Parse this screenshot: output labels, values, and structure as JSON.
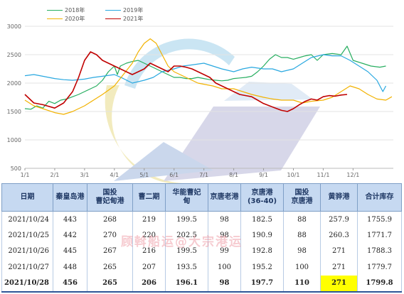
{
  "chart_data": {
    "type": "line",
    "x_ticks": [
      "1/1",
      "2/1",
      "3/1",
      "4/1",
      "5/1",
      "6/1",
      "7/1",
      "8/1",
      "9/1",
      "10/1",
      "11/1",
      "12/1"
    ],
    "y_ticks": [
      500,
      1000,
      1500,
      2000,
      2500,
      3000
    ],
    "ylim": [
      500,
      3000
    ],
    "xlim": [
      0,
      12.35
    ],
    "series": [
      {
        "name": "2018年",
        "color": "#27ae60",
        "points": [
          [
            0,
            1550
          ],
          [
            0.2,
            1540
          ],
          [
            0.4,
            1600
          ],
          [
            0.6,
            1560
          ],
          [
            0.8,
            1680
          ],
          [
            1.0,
            1640
          ],
          [
            1.2,
            1700
          ],
          [
            1.4,
            1720
          ],
          [
            1.6,
            1760
          ],
          [
            1.8,
            1800
          ],
          [
            2.0,
            1850
          ],
          [
            2.2,
            1900
          ],
          [
            2.4,
            1950
          ],
          [
            2.6,
            2050
          ],
          [
            2.8,
            2200
          ],
          [
            3.0,
            2300
          ],
          [
            3.1,
            2150
          ],
          [
            3.2,
            2300
          ],
          [
            3.4,
            2350
          ],
          [
            3.6,
            2380
          ],
          [
            3.8,
            2400
          ],
          [
            4.0,
            2350
          ],
          [
            4.2,
            2300
          ],
          [
            4.4,
            2250
          ],
          [
            4.6,
            2200
          ],
          [
            4.8,
            2150
          ],
          [
            5.0,
            2100
          ],
          [
            5.2,
            2100
          ],
          [
            5.4,
            2080
          ],
          [
            5.6,
            2080
          ],
          [
            5.8,
            2100
          ],
          [
            6.0,
            2080
          ],
          [
            6.2,
            2060
          ],
          [
            6.4,
            2050
          ],
          [
            6.6,
            2040
          ],
          [
            6.8,
            2050
          ],
          [
            7.0,
            2080
          ],
          [
            7.2,
            2090
          ],
          [
            7.4,
            2100
          ],
          [
            7.6,
            2120
          ],
          [
            7.8,
            2200
          ],
          [
            8.0,
            2300
          ],
          [
            8.2,
            2420
          ],
          [
            8.4,
            2500
          ],
          [
            8.6,
            2450
          ],
          [
            8.8,
            2450
          ],
          [
            9.0,
            2420
          ],
          [
            9.2,
            2450
          ],
          [
            9.4,
            2480
          ],
          [
            9.6,
            2500
          ],
          [
            9.8,
            2400
          ],
          [
            10.0,
            2500
          ],
          [
            10.3,
            2520
          ],
          [
            10.6,
            2500
          ],
          [
            10.8,
            2650
          ],
          [
            11.0,
            2400
          ],
          [
            11.3,
            2350
          ],
          [
            11.6,
            2300
          ],
          [
            11.9,
            2280
          ],
          [
            12.1,
            2300
          ]
        ]
      },
      {
        "name": "2019年",
        "color": "#29a8e0",
        "points": [
          [
            0,
            2130
          ],
          [
            0.3,
            2150
          ],
          [
            0.6,
            2120
          ],
          [
            1.0,
            2080
          ],
          [
            1.3,
            2060
          ],
          [
            1.6,
            2050
          ],
          [
            2.0,
            2070
          ],
          [
            2.3,
            2100
          ],
          [
            2.6,
            2120
          ],
          [
            3.0,
            2150
          ],
          [
            3.3,
            2080
          ],
          [
            3.6,
            2000
          ],
          [
            4.0,
            2050
          ],
          [
            4.3,
            2100
          ],
          [
            4.6,
            2200
          ],
          [
            5.0,
            2250
          ],
          [
            5.3,
            2300
          ],
          [
            5.6,
            2320
          ],
          [
            6.0,
            2350
          ],
          [
            6.3,
            2300
          ],
          [
            6.6,
            2250
          ],
          [
            7.0,
            2200
          ],
          [
            7.3,
            2250
          ],
          [
            7.6,
            2280
          ],
          [
            8.0,
            2250
          ],
          [
            8.3,
            2250
          ],
          [
            8.6,
            2200
          ],
          [
            9.0,
            2250
          ],
          [
            9.3,
            2350
          ],
          [
            9.6,
            2450
          ],
          [
            10.0,
            2500
          ],
          [
            10.3,
            2480
          ],
          [
            10.6,
            2480
          ],
          [
            10.9,
            2400
          ],
          [
            11.2,
            2300
          ],
          [
            11.5,
            2200
          ],
          [
            11.8,
            2050
          ],
          [
            12.0,
            1850
          ],
          [
            12.1,
            1950
          ]
        ]
      },
      {
        "name": "2020年",
        "color": "#f2b200",
        "points": [
          [
            0,
            1700
          ],
          [
            0.3,
            1600
          ],
          [
            0.6,
            1550
          ],
          [
            1.0,
            1480
          ],
          [
            1.3,
            1450
          ],
          [
            1.6,
            1500
          ],
          [
            2.0,
            1600
          ],
          [
            2.3,
            1700
          ],
          [
            2.6,
            1800
          ],
          [
            3.0,
            1950
          ],
          [
            3.3,
            2150
          ],
          [
            3.6,
            2350
          ],
          [
            3.8,
            2550
          ],
          [
            4.0,
            2700
          ],
          [
            4.2,
            2780
          ],
          [
            4.4,
            2700
          ],
          [
            4.6,
            2500
          ],
          [
            4.8,
            2300
          ],
          [
            5.0,
            2200
          ],
          [
            5.2,
            2150
          ],
          [
            5.4,
            2100
          ],
          [
            5.6,
            2050
          ],
          [
            5.8,
            2000
          ],
          [
            6.0,
            1980
          ],
          [
            6.3,
            1950
          ],
          [
            6.6,
            1900
          ],
          [
            7.0,
            1900
          ],
          [
            7.3,
            1850
          ],
          [
            7.6,
            1800
          ],
          [
            8.0,
            1750
          ],
          [
            8.3,
            1720
          ],
          [
            8.6,
            1700
          ],
          [
            9.0,
            1700
          ],
          [
            9.3,
            1650
          ],
          [
            9.6,
            1680
          ],
          [
            10.0,
            1700
          ],
          [
            10.3,
            1750
          ],
          [
            10.6,
            1850
          ],
          [
            10.9,
            1950
          ],
          [
            11.2,
            1900
          ],
          [
            11.5,
            1800
          ],
          [
            11.8,
            1720
          ],
          [
            12.1,
            1700
          ],
          [
            12.3,
            1760
          ]
        ]
      },
      {
        "name": "2021年",
        "color": "#c00000",
        "points": [
          [
            0,
            1800
          ],
          [
            0.3,
            1650
          ],
          [
            0.6,
            1620
          ],
          [
            1.0,
            1560
          ],
          [
            1.3,
            1650
          ],
          [
            1.6,
            1850
          ],
          [
            1.8,
            2100
          ],
          [
            2.0,
            2400
          ],
          [
            2.2,
            2550
          ],
          [
            2.4,
            2500
          ],
          [
            2.6,
            2400
          ],
          [
            2.8,
            2350
          ],
          [
            3.0,
            2300
          ],
          [
            3.2,
            2250
          ],
          [
            3.4,
            2200
          ],
          [
            3.6,
            2150
          ],
          [
            3.8,
            2200
          ],
          [
            4.0,
            2250
          ],
          [
            4.2,
            2350
          ],
          [
            4.4,
            2300
          ],
          [
            4.6,
            2250
          ],
          [
            4.8,
            2200
          ],
          [
            5.0,
            2300
          ],
          [
            5.2,
            2300
          ],
          [
            5.4,
            2280
          ],
          [
            5.6,
            2250
          ],
          [
            5.8,
            2200
          ],
          [
            6.0,
            2150
          ],
          [
            6.2,
            2100
          ],
          [
            6.4,
            2000
          ],
          [
            6.6,
            1950
          ],
          [
            6.8,
            1900
          ],
          [
            7.0,
            1850
          ],
          [
            7.2,
            1800
          ],
          [
            7.4,
            1780
          ],
          [
            7.6,
            1760
          ],
          [
            7.8,
            1700
          ],
          [
            8.0,
            1640
          ],
          [
            8.2,
            1600
          ],
          [
            8.4,
            1560
          ],
          [
            8.6,
            1520
          ],
          [
            8.8,
            1500
          ],
          [
            9.0,
            1550
          ],
          [
            9.2,
            1620
          ],
          [
            9.4,
            1680
          ],
          [
            9.6,
            1720
          ],
          [
            9.8,
            1700
          ],
          [
            10.0,
            1760
          ],
          [
            10.2,
            1780
          ],
          [
            10.4,
            1770
          ],
          [
            10.6,
            1790
          ],
          [
            10.8,
            1800
          ]
        ]
      }
    ]
  },
  "table": {
    "headers": [
      "日期",
      "秦皇岛港",
      "国投\n曹妃甸港",
      "曹二期",
      "华能曹妃\n甸",
      "京唐老港",
      "京唐港\n(36-40)",
      "国投\n京唐港",
      "黄骅港",
      "合计库存"
    ],
    "rows": [
      [
        "2021/10/24",
        "443",
        "268",
        "219",
        "199.5",
        "98",
        "182.5",
        "88",
        "257.9",
        "1755.9"
      ],
      [
        "2021/10/25",
        "442",
        "270",
        "220",
        "202.5",
        "98",
        "190.9",
        "88",
        "260.3",
        "1771.7"
      ],
      [
        "2021/10/26",
        "445",
        "267",
        "216",
        "199.5",
        "99",
        "192.8",
        "98",
        "271",
        "1788.3"
      ],
      [
        "2021/10/27",
        "448",
        "265",
        "207",
        "193.5",
        "100",
        "195.2",
        "100",
        "271",
        "1779.7"
      ],
      [
        "2021/10/28",
        "456",
        "265",
        "206",
        "196.1",
        "98",
        "197.7",
        "110",
        "271",
        "1799.8"
      ]
    ]
  },
  "watermark": "顾斡船运@大宗港运",
  "colors": {
    "header_bg": "#c6d9f1",
    "highlight": "#ffff00"
  }
}
